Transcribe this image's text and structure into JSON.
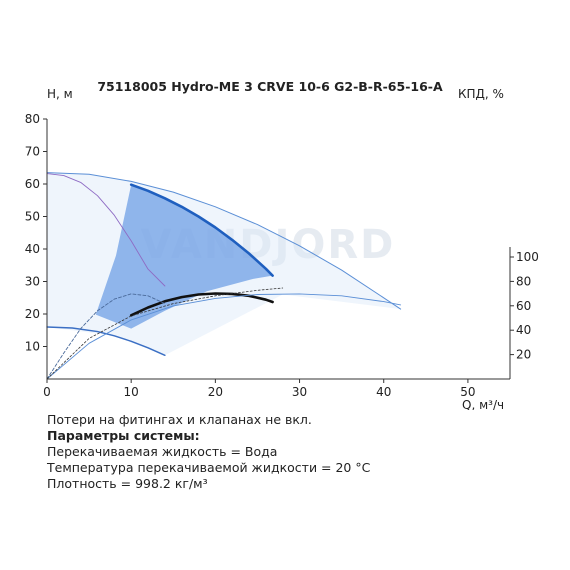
{
  "chart_data": {
    "type": "line",
    "title": "75118005 Hydro-ME 3 CRVE 10-6 G2-B-R-65-16-A",
    "ylabel_left": "H, м",
    "ylabel_right": "КПД, %",
    "xlabel": "Q, м³/ч",
    "xlim": [
      0,
      55
    ],
    "ylim_left": [
      0,
      80
    ],
    "ylim_right": [
      0,
      100
    ],
    "x_ticks": [
      0,
      10,
      20,
      30,
      40,
      50
    ],
    "y_ticks_left": [
      10,
      20,
      30,
      40,
      50,
      60,
      70,
      80
    ],
    "y_ticks_right": [
      20,
      40,
      60,
      80,
      100
    ],
    "grid": false,
    "watermark": "VANDJORD",
    "series": [
      {
        "role": "head-main",
        "color": "#1f5fbf",
        "x": [
          10,
          12,
          14,
          16,
          18,
          20,
          22,
          24,
          26,
          26.8
        ],
        "y": [
          59.8,
          57.9,
          55.6,
          53.0,
          50.0,
          46.6,
          42.8,
          38.6,
          33.9,
          31.8
        ]
      },
      {
        "role": "head-max",
        "color": "#5b8fd6",
        "x": [
          0,
          5,
          10,
          15,
          20,
          25,
          30,
          35,
          40,
          42
        ],
        "y": [
          63.5,
          63.0,
          60.8,
          57.5,
          53.0,
          47.5,
          41.0,
          33.5,
          25.0,
          21.5
        ]
      },
      {
        "role": "head-min",
        "color": "#3b6fc4",
        "x": [
          0,
          3,
          6,
          8,
          10,
          12,
          14
        ],
        "y": [
          16.0,
          15.7,
          14.6,
          13.3,
          11.6,
          9.6,
          7.3
        ]
      },
      {
        "role": "efficiency-main",
        "color": "#111111",
        "x": [
          10,
          12,
          14,
          16,
          18,
          20,
          22,
          24,
          26,
          26.8
        ],
        "y": [
          19.6,
          22.0,
          23.9,
          25.2,
          26.0,
          26.3,
          26.2,
          25.6,
          24.4,
          23.7
        ]
      },
      {
        "role": "efficiency-wide",
        "color": "#5b8fd6",
        "x": [
          0,
          5,
          10,
          15,
          20,
          25,
          30,
          35,
          40,
          42
        ],
        "y": [
          0,
          11.0,
          18.2,
          22.5,
          24.8,
          26.0,
          26.2,
          25.6,
          23.8,
          22.8
        ]
      },
      {
        "role": "efficiency-narrow",
        "color": "#4a6a9a",
        "x": [
          0,
          2,
          4,
          6,
          8,
          10,
          12,
          14
        ],
        "y": [
          0,
          8.0,
          15.5,
          21.0,
          24.6,
          26.2,
          25.6,
          23.2
        ]
      },
      {
        "role": "power",
        "color": "#8e6bc4",
        "x": [
          0,
          2,
          4,
          6,
          8,
          10,
          12,
          14
        ],
        "y": [
          63.2,
          62.6,
          60.5,
          56.4,
          50.4,
          42.5,
          33.8,
          28.6
        ]
      },
      {
        "role": "system-curve",
        "color": "#333333",
        "x": [
          0,
          5,
          10,
          15,
          20,
          25,
          28
        ],
        "y": [
          0,
          12.5,
          19.4,
          23.2,
          25.6,
          27.3,
          28.0
        ]
      }
    ],
    "operating_region": {
      "color": "#6f9fe6",
      "x": [
        10,
        12,
        14,
        16,
        18,
        20,
        22,
        24,
        26,
        26.8,
        24.5,
        19,
        14,
        10,
        5.8,
        8.2
      ],
      "y": [
        59.8,
        57.9,
        55.6,
        53.0,
        50.0,
        46.6,
        42.8,
        38.6,
        33.9,
        31.8,
        30.8,
        27.0,
        21.0,
        15.5,
        19.8,
        38.0
      ]
    },
    "extended_region": {
      "color": "#dce8f8",
      "x": [
        0,
        5,
        10,
        15,
        20,
        25,
        30,
        35,
        40,
        42,
        28,
        14,
        8,
        0
      ],
      "y": [
        63.5,
        63.0,
        60.8,
        57.5,
        53.0,
        47.5,
        41.0,
        33.5,
        25.0,
        21.5,
        26.0,
        7.3,
        13.3,
        16.0
      ]
    }
  },
  "notes": {
    "line1": "Потери на фитингах и клапанах не вкл.",
    "line2": "Параметры системы:",
    "line3": "Перекачиваемая жидкость = Вода",
    "line4": "Температура перекачиваемой жидкости = 20 °C",
    "line5": "Плотность = 998.2 кг/м³"
  }
}
